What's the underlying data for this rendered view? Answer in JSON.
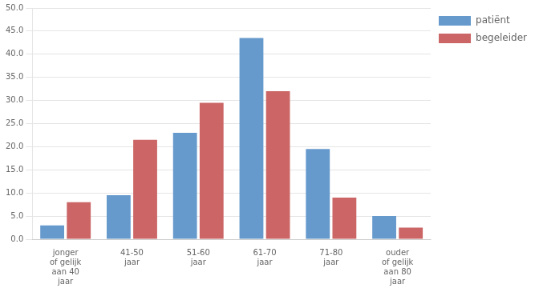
{
  "chart_data": {
    "type": "bar",
    "categories": [
      "jonger\nof gelijk\naan 40\njaar",
      "41-50\njaar",
      "51-60\njaar",
      "61-70\njaar",
      "71-80\njaar",
      "ouder\nof gelijk\naan 80\njaar"
    ],
    "series": [
      {
        "name": "patiënt",
        "color": "#6699CC",
        "values": [
          3.0,
          9.5,
          23.0,
          43.5,
          19.5,
          5.0
        ]
      },
      {
        "name": "begeleider",
        "color": "#CC6666",
        "values": [
          8.0,
          21.5,
          29.5,
          32.0,
          9.0,
          2.5
        ]
      }
    ],
    "ylim": [
      0,
      50
    ],
    "yticks": [
      {
        "value": 0.0,
        "label": "0.0"
      },
      {
        "value": 5.0,
        "label": "5.0"
      },
      {
        "value": 10.0,
        "label": "10.0"
      },
      {
        "value": 15.0,
        "label": "15.0"
      },
      {
        "value": 20.0,
        "label": "20.0"
      },
      {
        "value": 25.0,
        "label": "25.0"
      },
      {
        "value": 30.0,
        "label": "30.0"
      },
      {
        "value": 35.0,
        "label": "35.0"
      },
      {
        "value": 40.0,
        "label": "40.0"
      },
      {
        "value": 45.0,
        "label": "45.0"
      },
      {
        "value": 50.0,
        "label": "50.0"
      }
    ],
    "grid": true,
    "legend": "right"
  }
}
